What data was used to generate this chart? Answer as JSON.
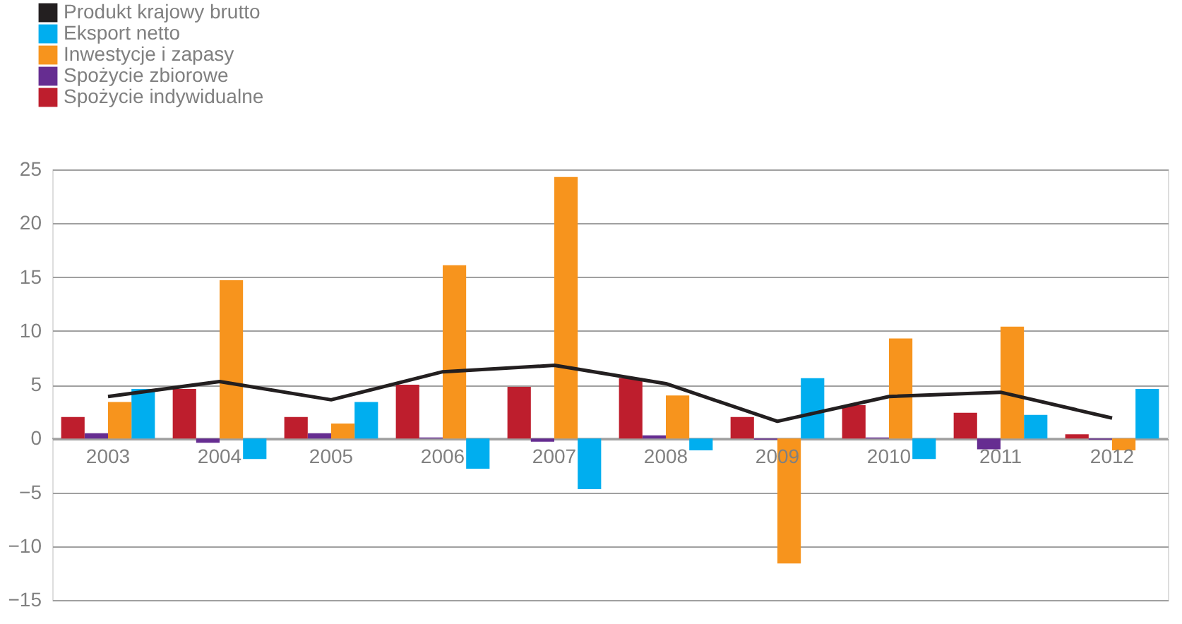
{
  "chart_data": {
    "type": "bar",
    "categories": [
      "2003",
      "2004",
      "2005",
      "2006",
      "2007",
      "2008",
      "2009",
      "2010",
      "2011",
      "2012"
    ],
    "series": [
      {
        "name": "Produkt krajowy brutto",
        "type": "line",
        "color": "#231f20",
        "values": [
          3.9,
          5.3,
          3.6,
          6.2,
          6.8,
          5.1,
          1.6,
          3.9,
          4.3,
          1.9
        ]
      },
      {
        "name": "Eksport netto",
        "color": "#00aeef",
        "values": [
          4.6,
          -1.9,
          3.4,
          -2.8,
          -4.7,
          -1.1,
          5.6,
          -1.9,
          2.2,
          4.6
        ]
      },
      {
        "name": "Inwestycje i zapasy",
        "color": "#f7941d",
        "values": [
          3.4,
          14.7,
          1.4,
          16.1,
          24.3,
          4.0,
          -11.6,
          9.3,
          10.4,
          -1.1
        ]
      },
      {
        "name": "Spożycie zbiorowe",
        "color": "#662d91",
        "values": [
          0.5,
          -0.4,
          0.5,
          0.1,
          -0.3,
          0.3,
          -0.1,
          0.1,
          -1.0,
          -0.1
        ]
      },
      {
        "name": "Spożycie indywidualne",
        "color": "#be1e2d",
        "values": [
          2.0,
          4.6,
          2.0,
          5.0,
          4.8,
          5.6,
          2.0,
          3.1,
          2.4,
          0.4
        ]
      }
    ],
    "ylim": [
      -15,
      25
    ],
    "yticks": [
      -15,
      -10,
      -5,
      0,
      5,
      10,
      15,
      20,
      25
    ],
    "grid": "y",
    "legend": "top left"
  }
}
